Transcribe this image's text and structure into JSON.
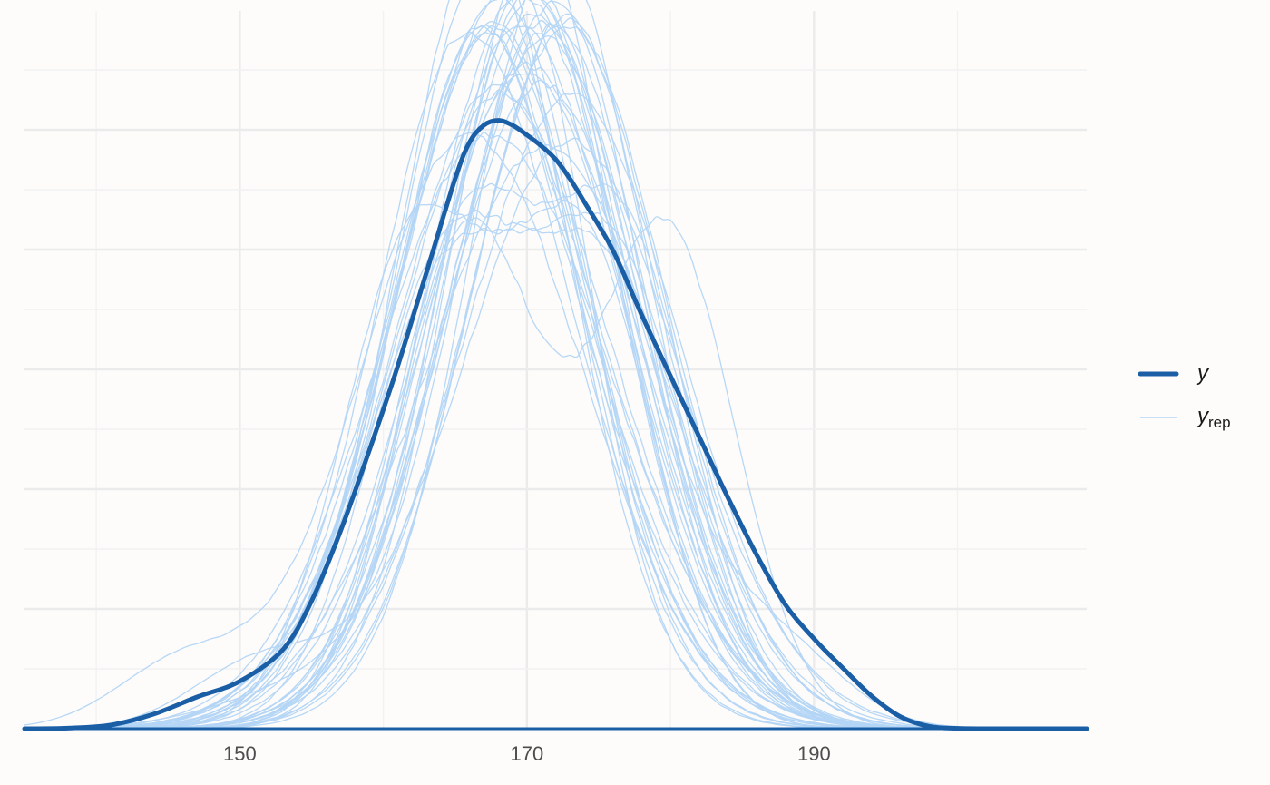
{
  "colors": {
    "background": "#fdfcfa",
    "grid_major": "#ebebeb",
    "grid_minor": "#f2f2f2",
    "y_line": "#1a5ea6",
    "yrep_line": "#b3d5f5",
    "axis_text": "#4d4d4d"
  },
  "chart_data": {
    "type": "line",
    "plot": "posterior predictive density overlay",
    "title": "",
    "xlabel": "",
    "ylabel": "",
    "xlim": [
      135,
      209
    ],
    "ylim": [
      0,
      0.059
    ],
    "x_ticks": [
      150,
      170,
      190
    ],
    "x_tick_labels": [
      "150",
      "170",
      "190"
    ],
    "y_tick_labels_shown": false,
    "grid": true,
    "legend": {
      "position": "right",
      "entries": [
        {
          "key": "y",
          "label": "y",
          "subscript": ""
        },
        {
          "key": "yrep",
          "label": "y",
          "subscript": "rep"
        }
      ]
    },
    "series": [
      {
        "name": "y",
        "x": [
          135,
          138,
          141,
          144,
          147,
          150,
          153,
          155,
          157,
          159,
          161,
          163,
          165,
          166,
          167,
          168,
          169,
          170,
          171,
          172,
          173,
          174,
          176,
          178,
          180,
          182,
          184,
          186,
          188,
          190,
          192,
          194,
          196,
          198,
          200,
          203,
          206,
          209
        ],
        "y": [
          0,
          5e-05,
          0.0003,
          0.0012,
          0.0026,
          0.0039,
          0.0065,
          0.0105,
          0.0162,
          0.0228,
          0.0298,
          0.0375,
          0.0452,
          0.0482,
          0.0496,
          0.05,
          0.0496,
          0.0488,
          0.0479,
          0.0468,
          0.0452,
          0.0433,
          0.0393,
          0.034,
          0.029,
          0.024,
          0.019,
          0.0143,
          0.0102,
          0.0074,
          0.005,
          0.0027,
          0.001,
          0.0002,
          3e-05,
          0,
          0,
          0
        ]
      },
      {
        "name": "y_rep",
        "draws": 40,
        "peak_range": [
          0.04,
          0.059
        ],
        "mean_range": [
          166.5,
          173.5
        ],
        "sd_range": [
          6.5,
          8.5
        ],
        "bimodal_draws_approx": 6,
        "heavy_tail_draws_approx": 4
      }
    ]
  }
}
